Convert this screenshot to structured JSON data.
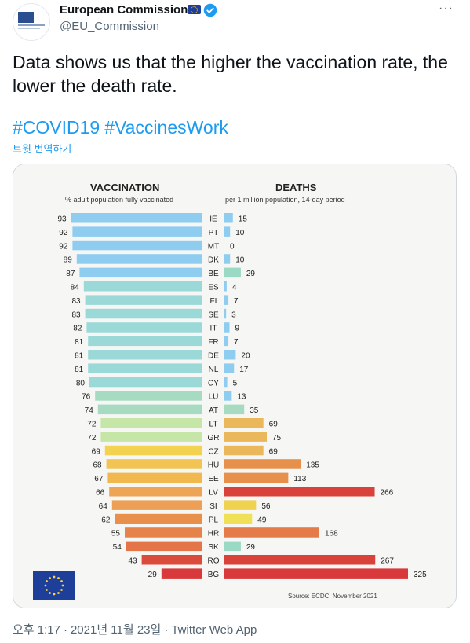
{
  "tweet": {
    "display_name": "European Commission",
    "handle": "@EU_Commission",
    "text": "Data shows us that the higher the vaccination rate, the lower the death rate.",
    "hashtags": [
      "#COVID19",
      "#VaccinesWork"
    ],
    "translate_label": "트윗 번역하기",
    "timestamp": {
      "time": "오후 1:17",
      "date": "2021년 11월 23일",
      "client": "Twitter Web App",
      "separator": "·"
    },
    "icons": {
      "verified": "verified-badge-icon",
      "flag": "eu-flag-icon",
      "more": "more-options-icon"
    },
    "colors": {
      "link": "#1d9bf0",
      "verified": "#1d9bf0",
      "text": "#0f1419",
      "muted": "#536471"
    }
  },
  "chart_data": {
    "type": "bar",
    "left_title": "VACCINATION",
    "left_subtitle": "% adult population fully vaccinated",
    "right_title": "DEATHS",
    "right_subtitle": "per 1 million population, 14-day period",
    "source": "Source: ECDC, November 2021",
    "categories": [
      "IE",
      "PT",
      "MT",
      "DK",
      "BE",
      "ES",
      "FI",
      "SE",
      "IT",
      "FR",
      "DE",
      "NL",
      "CY",
      "LU",
      "AT",
      "LT",
      "GR",
      "CZ",
      "HU",
      "EE",
      "LV",
      "SI",
      "PL",
      "HR",
      "SK",
      "RO",
      "BG"
    ],
    "series": [
      {
        "name": "VACCINATION",
        "values": [
          93,
          92,
          92,
          89,
          87,
          84,
          83,
          83,
          82,
          81,
          81,
          81,
          80,
          76,
          74,
          72,
          72,
          69,
          68,
          67,
          66,
          64,
          62,
          55,
          54,
          43,
          29
        ]
      },
      {
        "name": "DEATHS",
        "values": [
          15,
          10,
          0,
          10,
          29,
          4,
          7,
          3,
          9,
          7,
          20,
          17,
          5,
          13,
          35,
          69,
          75,
          69,
          135,
          113,
          266,
          56,
          49,
          168,
          29,
          267,
          325
        ]
      }
    ],
    "left_colors": [
      "#8ecdf0",
      "#8ecdf0",
      "#8ecdf0",
      "#8ecdf0",
      "#8ecdf0",
      "#9ad9d8",
      "#9ad9d8",
      "#9ad9d8",
      "#9ad9d8",
      "#9ad9d8",
      "#9ad9d8",
      "#9ad9d8",
      "#9ad9d8",
      "#a6dbc1",
      "#a6dbc1",
      "#c5e6a6",
      "#c5e6a6",
      "#f3d24f",
      "#f1c453",
      "#f0b84e",
      "#eda455",
      "#ec9f55",
      "#e98f4c",
      "#e6834a",
      "#e37548",
      "#db4b3c",
      "#d9393b"
    ],
    "right_colors": [
      "#8ecdf0",
      "#8ecdf0",
      "#8ecdf0",
      "#8ecdf0",
      "#9ad9c3",
      "#8ecdf0",
      "#8ecdf0",
      "#8ecdf0",
      "#8ecdf0",
      "#8ecdf0",
      "#8ecdf0",
      "#8ecdf0",
      "#8ecdf0",
      "#8ecdf0",
      "#a6dbc1",
      "#eab85a",
      "#eab85a",
      "#eab85a",
      "#e6904c",
      "#e6904c",
      "#d9413b",
      "#f0d250",
      "#f0e058",
      "#e47b48",
      "#9ad9c3",
      "#d9413b",
      "#d9393b"
    ],
    "eu_flag_color": "#1d3f9a"
  }
}
